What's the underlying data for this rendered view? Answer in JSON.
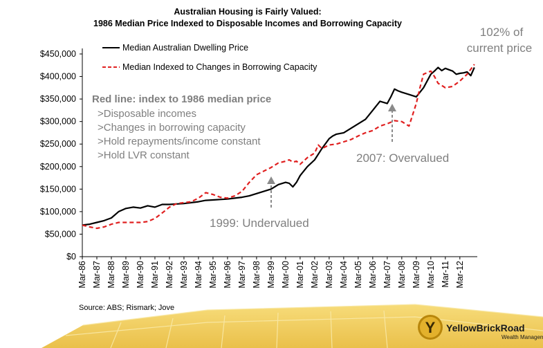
{
  "chart_data": {
    "type": "line",
    "title": "Australian Housing is Fairly Valued:",
    "subtitle": "1986 Median Price Indexed to Disposable Incomes and Borrowing Capacity",
    "y_tick_labels": [
      "$0",
      "$50,000",
      "$100,000",
      "$150,000",
      "$200,000",
      "$250,000",
      "$300,000",
      "$350,000",
      "$400,000",
      "$450,000"
    ],
    "ylim": [
      0,
      450000
    ],
    "x_tick_labels": [
      "Mar-86",
      "Mar-87",
      "Mar-88",
      "Mar-89",
      "Mar-90",
      "Mar-91",
      "Mar-92",
      "Mar-93",
      "Mar-94",
      "Mar-95",
      "Mar-96",
      "Mar-97",
      "Mar-98",
      "Mar-99",
      "Mar-00",
      "Mar-01",
      "Mar-02",
      "Mar-03",
      "Mar-04",
      "Mar-05",
      "Mar-06",
      "Mar-07",
      "Mar-08",
      "Mar-09",
      "Mar-10",
      "Mar-11",
      "Mar-12"
    ],
    "xlim": [
      1986.0,
      2013.2
    ],
    "grid": false,
    "legend_position": "top-left",
    "series": [
      {
        "name": "Median Australian Dwelling Price",
        "color": "#000000",
        "style": "solid",
        "x": [
          1986.0,
          1986.5,
          1987.0,
          1987.5,
          1988.0,
          1988.5,
          1989.0,
          1989.5,
          1990.0,
          1990.5,
          1991.0,
          1991.5,
          1992.0,
          1992.5,
          1993.0,
          1993.5,
          1994.0,
          1994.5,
          1995.0,
          1995.5,
          1996.0,
          1996.5,
          1997.0,
          1997.5,
          1998.0,
          1998.5,
          1999.0,
          1999.5,
          2000.0,
          2000.25,
          2000.5,
          2000.75,
          2001.0,
          2001.25,
          2001.5,
          2002.0,
          2002.5,
          2003.0,
          2003.25,
          2003.5,
          2004.0,
          2004.5,
          2005.0,
          2005.5,
          2006.0,
          2006.5,
          2007.0,
          2007.25,
          2007.5,
          2007.75,
          2008.0,
          2008.5,
          2009.0,
          2009.5,
          2010.0,
          2010.25,
          2010.5,
          2010.75,
          2011.0,
          2011.25,
          2011.5,
          2011.75,
          2012.0,
          2012.25,
          2012.5,
          2012.75,
          2013.0
        ],
        "values": [
          70000,
          72000,
          76000,
          80000,
          86000,
          100000,
          107000,
          110000,
          108000,
          113000,
          110000,
          116000,
          116000,
          117000,
          118000,
          120000,
          122000,
          125000,
          126000,
          127000,
          128000,
          130000,
          132000,
          135000,
          140000,
          145000,
          150000,
          160000,
          165000,
          163000,
          155000,
          165000,
          180000,
          190000,
          200000,
          215000,
          240000,
          262000,
          268000,
          272000,
          275000,
          285000,
          295000,
          305000,
          325000,
          345000,
          340000,
          355000,
          372000,
          368000,
          365000,
          360000,
          355000,
          375000,
          405000,
          412000,
          420000,
          413000,
          418000,
          415000,
          412000,
          405000,
          407000,
          408000,
          410000,
          402000,
          420000
        ]
      },
      {
        "name": "Median Indexed to Changes in Borrowing Capacity",
        "color": "#e02020",
        "style": "dashed",
        "x": [
          1986.0,
          1986.5,
          1987.0,
          1987.5,
          1988.0,
          1988.5,
          1989.0,
          1989.5,
          1990.0,
          1990.5,
          1991.0,
          1991.5,
          1992.0,
          1992.5,
          1993.0,
          1993.5,
          1994.0,
          1994.5,
          1995.0,
          1995.5,
          1996.0,
          1996.5,
          1997.0,
          1997.5,
          1998.0,
          1998.5,
          1999.0,
          1999.5,
          2000.0,
          2000.25,
          2000.5,
          2000.75,
          2001.0,
          2001.5,
          2002.0,
          2002.25,
          2002.5,
          2003.0,
          2003.5,
          2004.0,
          2004.5,
          2005.0,
          2005.5,
          2006.0,
          2006.5,
          2007.0,
          2007.5,
          2008.0,
          2008.5,
          2009.0,
          2009.25,
          2009.5,
          2010.0,
          2010.25,
          2010.5,
          2011.0,
          2011.5,
          2012.0,
          2012.5,
          2013.0
        ],
        "values": [
          70000,
          66000,
          63000,
          66000,
          72000,
          76000,
          76000,
          76000,
          76000,
          78000,
          85000,
          97000,
          110000,
          118000,
          120000,
          122000,
          130000,
          142000,
          138000,
          132000,
          130000,
          135000,
          145000,
          165000,
          182000,
          190000,
          198000,
          208000,
          212000,
          215000,
          210000,
          212000,
          205000,
          220000,
          230000,
          248000,
          240000,
          248000,
          250000,
          255000,
          260000,
          268000,
          275000,
          280000,
          290000,
          295000,
          302000,
          300000,
          290000,
          340000,
          375000,
          405000,
          412000,
          400000,
          385000,
          375000,
          378000,
          390000,
          405000,
          427000
        ]
      }
    ],
    "annotations": {
      "note_heading": "Red line: index to 1986 median price",
      "note_items": [
        ">Disposable incomes",
        ">Changes in borrowing capacity",
        ">Hold repayments/income constant",
        ">Hold LVR constant"
      ],
      "undervalued": "1999: Undervalued",
      "overvalued": "2007: Overvalued",
      "pct_line1": "102% of",
      "pct_line2": "current price"
    }
  },
  "source": "Source: ABS; Rismark; Jove",
  "brand": {
    "name": "YellowBrickRoad",
    "tagline": "Wealth Management",
    "logo_letter": "Y"
  },
  "colors": {
    "annotation_gray": "#7f7f7f",
    "brand_yellow": "#f2c94c",
    "brand_gold": "#b8860b"
  }
}
